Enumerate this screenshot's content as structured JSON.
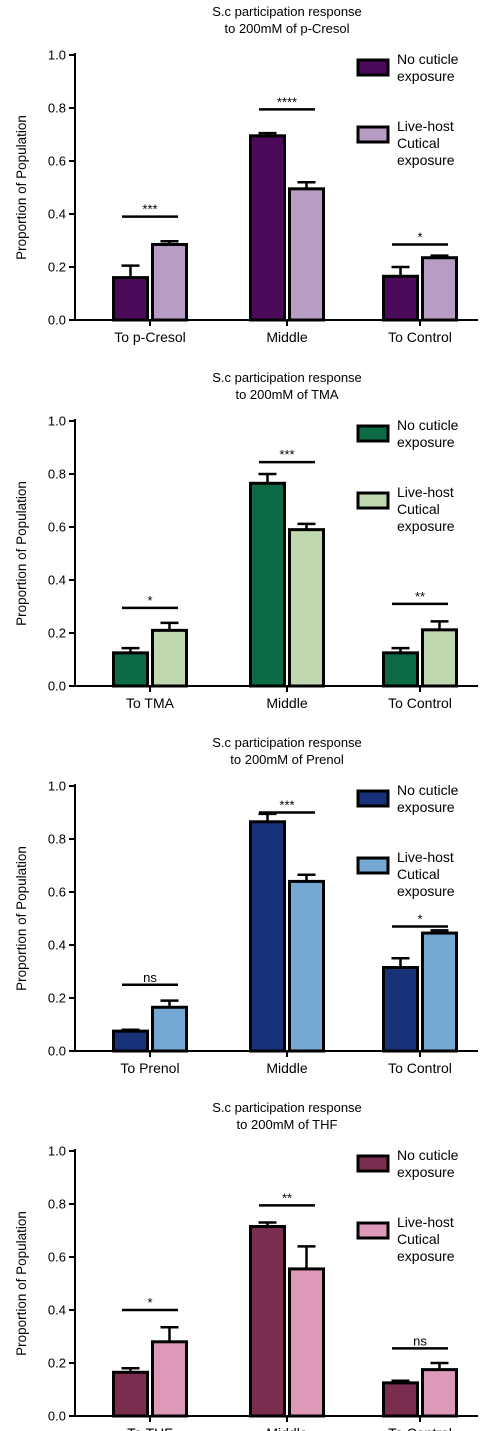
{
  "chart_data": [
    {
      "type": "bar",
      "title": [
        "S.c participation response",
        "to 200mM of p-Cresol"
      ],
      "ylabel": "Proportion of Population",
      "ylim": [
        0,
        1.0
      ],
      "yticks": [
        "0.0",
        "0.2",
        "0.4",
        "0.6",
        "0.8",
        "1.0"
      ],
      "categories": [
        "To p-Cresol",
        "Middle",
        "To Control"
      ],
      "series": [
        {
          "name": [
            "No cuticle",
            "exposure"
          ],
          "color": "#4b0a5a",
          "values": [
            0.16,
            0.695,
            0.165
          ],
          "errors": [
            0.045,
            0.01,
            0.035
          ]
        },
        {
          "name": [
            "Live-host",
            "Cutical",
            "exposure"
          ],
          "color": "#b79dc4",
          "values": [
            0.285,
            0.495,
            0.235
          ],
          "errors": [
            0.012,
            0.025,
            0.008
          ]
        }
      ],
      "significance": [
        "***",
        "****",
        "*"
      ],
      "sig_y": [
        0.39,
        0.795,
        0.285
      ]
    },
    {
      "type": "bar",
      "title": [
        "S.c participation response",
        "to 200mM of TMA"
      ],
      "ylabel": "Proportion of Population",
      "ylim": [
        0,
        1.0
      ],
      "yticks": [
        "0.0",
        "0.2",
        "0.4",
        "0.6",
        "0.8",
        "1.0"
      ],
      "categories": [
        "To TMA",
        "Middle",
        "To Control"
      ],
      "series": [
        {
          "name": [
            "No cuticle",
            "exposure"
          ],
          "color": "#0c6b45",
          "values": [
            0.125,
            0.765,
            0.125
          ],
          "errors": [
            0.018,
            0.035,
            0.018
          ]
        },
        {
          "name": [
            "Live-host",
            "Cutical",
            "exposure"
          ],
          "color": "#bfd8ae",
          "values": [
            0.21,
            0.59,
            0.212
          ],
          "errors": [
            0.028,
            0.022,
            0.032
          ]
        }
      ],
      "significance": [
        "*",
        "***",
        "**"
      ],
      "sig_y": [
        0.295,
        0.845,
        0.31
      ]
    },
    {
      "type": "bar",
      "title": [
        "S.c participation response",
        "to 200mM of Prenol"
      ],
      "ylabel": "Proportion of Population",
      "ylim": [
        0,
        1.0
      ],
      "yticks": [
        "0.0",
        "0.2",
        "0.4",
        "0.6",
        "0.8",
        "1.0"
      ],
      "categories": [
        "To Prenol",
        "Middle",
        "To Control"
      ],
      "series": [
        {
          "name": [
            "No cuticle",
            "exposure"
          ],
          "color": "#173278",
          "values": [
            0.075,
            0.865,
            0.315
          ],
          "errors": [
            0.005,
            0.03,
            0.035
          ]
        },
        {
          "name": [
            "Live-host",
            "Cutical",
            "exposure"
          ],
          "color": "#75a9d4",
          "values": [
            0.165,
            0.64,
            0.445
          ],
          "errors": [
            0.025,
            0.025,
            0.01
          ]
        }
      ],
      "significance": [
        "ns",
        "***",
        "*"
      ],
      "sig_y": [
        0.25,
        0.9,
        0.47
      ]
    },
    {
      "type": "bar",
      "title": [
        "S.c participation response",
        "to 200mM of THF"
      ],
      "ylabel": "Proportion of Population",
      "ylim": [
        0,
        1.0
      ],
      "yticks": [
        "0.0",
        "0.2",
        "0.4",
        "0.6",
        "0.8",
        "1.0"
      ],
      "categories": [
        "To THF",
        "Middle",
        "To Control"
      ],
      "series": [
        {
          "name": [
            "No cuticle",
            "exposure"
          ],
          "color": "#7a2d4f",
          "values": [
            0.165,
            0.715,
            0.125
          ],
          "errors": [
            0.015,
            0.015,
            0.008
          ]
        },
        {
          "name": [
            "Live-host",
            "Cutical",
            "exposure"
          ],
          "color": "#dc9ab8",
          "values": [
            0.28,
            0.555,
            0.175
          ],
          "errors": [
            0.055,
            0.085,
            0.025
          ]
        }
      ],
      "significance": [
        "*",
        "**",
        "ns"
      ],
      "sig_y": [
        0.4,
        0.795,
        0.255
      ]
    }
  ]
}
